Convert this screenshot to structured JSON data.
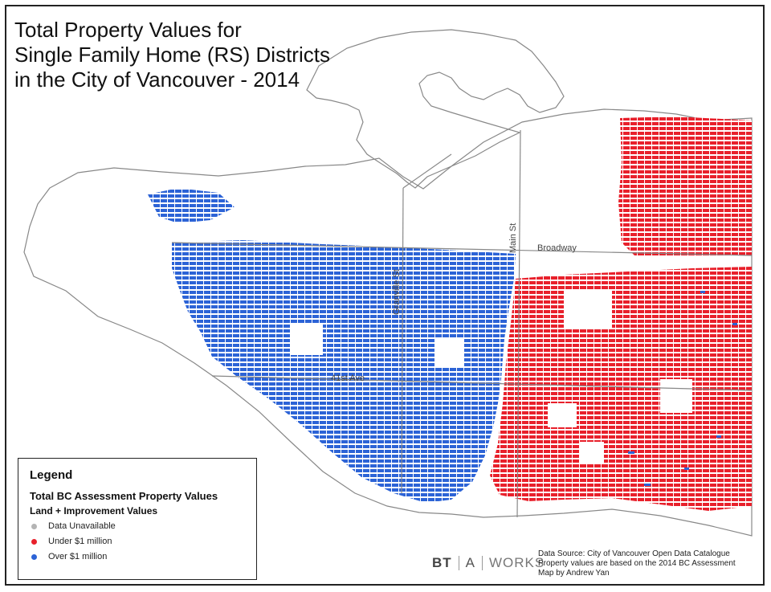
{
  "title_lines": [
    "Total Property Values for",
    "Single Family Home (RS) Districts",
    "in the City of Vancouver - 2014"
  ],
  "roads": {
    "broadway": "Broadway",
    "granville": "Granville St",
    "main": "Main St",
    "forty_first": "41st Ave"
  },
  "legend": {
    "heading": "Legend",
    "subtitle": "Total BC Assessment Property Values",
    "subtitle2": "Land + Improvement Values",
    "items": [
      {
        "label": "Data Unavailable",
        "color": "#b4b4b4"
      },
      {
        "label": "Under $1 million",
        "color": "#e8202b"
      },
      {
        "label": "Over $1 million",
        "color": "#2c63d6"
      }
    ]
  },
  "logo": {
    "part1": "BT",
    "part2": "A",
    "part3": "WORKS"
  },
  "source_lines": [
    "Data Source: City of Vancouver Open Data Catalogue",
    "Property values are based on the 2014 BC Assessment",
    "Map by Andrew Yan"
  ],
  "colors": {
    "under": "#e8202b",
    "over": "#2c63d6",
    "unavailable": "#b4b4b4"
  }
}
